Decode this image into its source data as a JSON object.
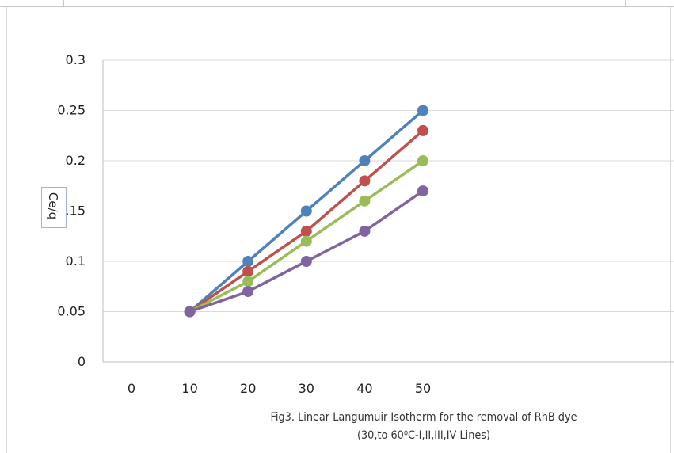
{
  "chart_data": {
    "type": "line",
    "x": [
      10,
      20,
      30,
      40,
      50
    ],
    "xticks": [
      "0",
      "10",
      "20",
      "30",
      "40",
      "50"
    ],
    "yticks": [
      "0",
      "0.05",
      "0.1",
      "0.15",
      "0.2",
      "0.25",
      "0.3"
    ],
    "xlim": [
      0,
      50
    ],
    "ylim": [
      0,
      0.3
    ],
    "ylabel": "Ce/q",
    "grid": "horizontal",
    "legend": "none",
    "series": [
      {
        "color": "#4f81bd",
        "values": [
          0.05,
          0.1,
          0.15,
          0.2,
          0.25
        ]
      },
      {
        "color": "#c0504d",
        "values": [
          0.05,
          0.09,
          0.13,
          0.18,
          0.23
        ]
      },
      {
        "color": "#9bbb59",
        "values": [
          0.05,
          0.08,
          0.12,
          0.16,
          0.2
        ]
      },
      {
        "color": "#8064a2",
        "values": [
          0.05,
          0.07,
          0.1,
          0.13,
          0.17
        ]
      }
    ],
    "caption_line1": "Fig3. Linear Langumuir Isotherm for the removal of RhB dye",
    "caption_line2": "(30,to 60⁰C-I,II,III,IV Lines)"
  }
}
